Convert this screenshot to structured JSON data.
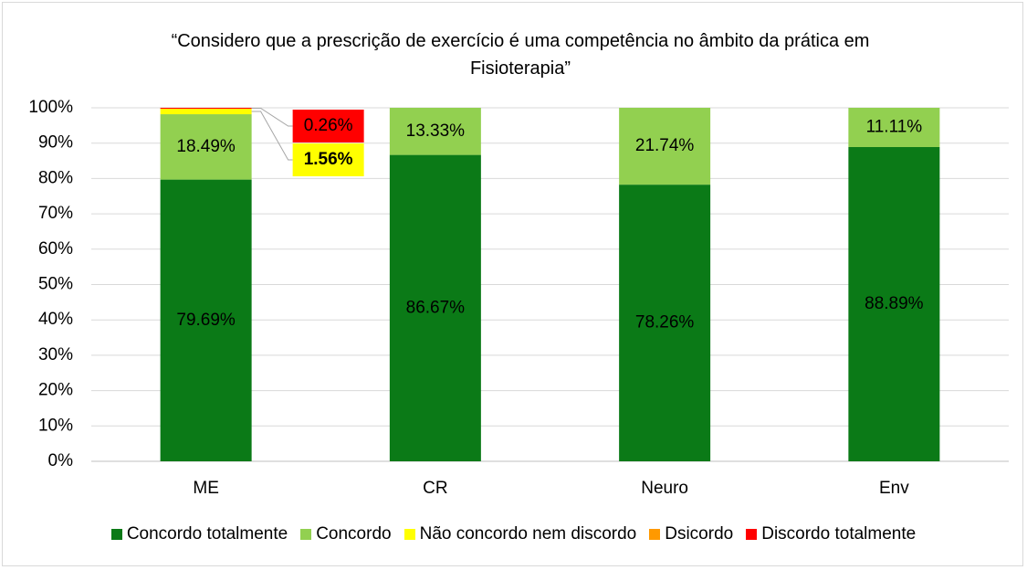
{
  "chart_data": {
    "type": "bar",
    "stacked": true,
    "title": "“Considero que a prescrição de exercício é uma competência no âmbito da prática em Fisioterapia”",
    "categories": [
      "ME",
      "CR",
      "Neuro",
      "Env"
    ],
    "series": [
      {
        "name": "Concordo totalmente",
        "color": "#0b7a17",
        "values": [
          79.69,
          86.67,
          78.26,
          88.89
        ],
        "value_labels": [
          "79.69%",
          "86.67%",
          "78.26%",
          "88.89%"
        ]
      },
      {
        "name": "Concordo",
        "color": "#92d050",
        "values": [
          18.49,
          13.33,
          21.74,
          11.11
        ],
        "value_labels": [
          "18.49%",
          "13.33%",
          "21.74%",
          "11.11%"
        ]
      },
      {
        "name": "Não concordo nem discordo",
        "color": "#ffff00",
        "values": [
          1.56,
          0,
          0,
          0
        ],
        "value_labels": [
          "1.56%",
          null,
          null,
          null
        ]
      },
      {
        "name": "Dsicordo",
        "color": "#ff9900",
        "values": [
          0,
          0,
          0,
          0
        ],
        "value_labels": [
          null,
          null,
          null,
          null
        ]
      },
      {
        "name": "Discordo totalmente",
        "color": "#ff0000",
        "values": [
          0.26,
          0,
          0,
          0
        ],
        "value_labels": [
          "0.26%",
          null,
          null,
          null
        ]
      }
    ],
    "ylim": [
      0,
      100
    ],
    "yticks": [
      {
        "value": 0,
        "label": "0%"
      },
      {
        "value": 10,
        "label": "10%"
      },
      {
        "value": 20,
        "label": "20%"
      },
      {
        "value": 30,
        "label": "30%"
      },
      {
        "value": 40,
        "label": "40%"
      },
      {
        "value": 50,
        "label": "50%"
      },
      {
        "value": 60,
        "label": "60%"
      },
      {
        "value": 70,
        "label": "70%"
      },
      {
        "value": 80,
        "label": "80%"
      },
      {
        "value": 90,
        "label": "90%"
      },
      {
        "value": 100,
        "label": "100%"
      }
    ],
    "grid": true,
    "legend": "bottom"
  }
}
